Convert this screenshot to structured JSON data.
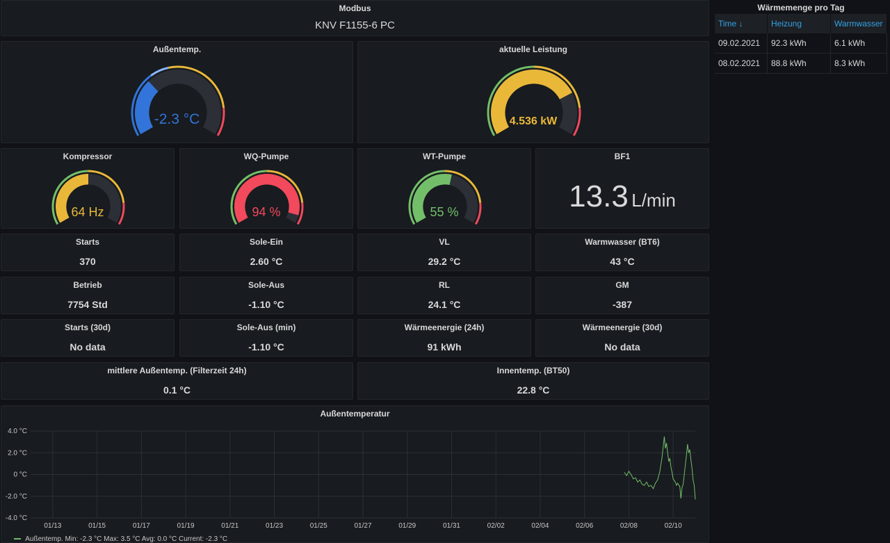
{
  "header": {
    "title": "Modbus",
    "device": "KNV F1155-6 PC"
  },
  "table": {
    "title": "Wärmemenge pro Tag",
    "columns": [
      "Time ↓",
      "Heizung",
      "Warmwasser"
    ],
    "rows": [
      [
        "09.02.2021",
        "92.3 kWh",
        "6.1 kWh"
      ],
      [
        "08.02.2021",
        "88.8 kWh",
        "8.3 kWh"
      ]
    ]
  },
  "gauges": {
    "aussentemp": {
      "title": "Außentemp.",
      "value": "-2.3 °C",
      "fraction": 0.32,
      "color": "#3274d9"
    },
    "leistung": {
      "title": "aktuelle Leistung",
      "value": "4.536 kW",
      "fraction": 0.76,
      "color": "#eab839"
    },
    "kompressor": {
      "title": "Kompressor",
      "value": "64 Hz",
      "fraction": 0.5,
      "color": "#eab839"
    },
    "wq_pumpe": {
      "title": "WQ-Pumpe",
      "value": "94 %",
      "fraction": 0.94,
      "color": "#f2495c"
    },
    "wt_pumpe": {
      "title": "WT-Pumpe",
      "value": "55 %",
      "fraction": 0.55,
      "color": "#73bf69"
    }
  },
  "bf1": {
    "title": "BF1",
    "value": "13.3",
    "unit": "L/min"
  },
  "stats": {
    "starts": {
      "title": "Starts",
      "value": "370"
    },
    "sole_ein": {
      "title": "Sole-Ein",
      "value": "2.60 °C"
    },
    "vl": {
      "title": "VL",
      "value": "29.2 °C"
    },
    "warmwasser": {
      "title": "Warmwasser (BT6)",
      "value": "43 °C"
    },
    "betrieb": {
      "title": "Betrieb",
      "value": "7754 Std"
    },
    "sole_aus": {
      "title": "Sole-Aus",
      "value": "-1.10 °C"
    },
    "rl": {
      "title": "RL",
      "value": "24.1 °C"
    },
    "gm": {
      "title": "GM",
      "value": "-387"
    },
    "starts30": {
      "title": "Starts (30d)",
      "value": "No data"
    },
    "sole_aus_min": {
      "title": "Sole-Aus (min)",
      "value": "-1.10 °C"
    },
    "waerme24": {
      "title": "Wärmeenergie (24h)",
      "value": "91 kWh"
    },
    "waerme30": {
      "title": "Wärmeenergie (30d)",
      "value": "No data"
    },
    "mittlere": {
      "title": "mittlere Außentemp. (Filterzeit 24h)",
      "value": "0.1 °C"
    },
    "innen": {
      "title": "Innentemp. (BT50)",
      "value": "22.8 °C"
    }
  },
  "chart": {
    "title": "Außentemperatur",
    "legend": "Außentemp.  Min: -2.3 °C  Max: 3.5 °C  Avg: 0.0 °C  Current: -2.3 °C"
  },
  "chart_data": {
    "type": "line",
    "title": "Außentemperatur",
    "ylim": [
      -4,
      4
    ],
    "yticks": [
      "4.0 °C",
      "2.0 °C",
      "0 °C",
      "-2.0 °C",
      "-4.0 °C"
    ],
    "xticks": [
      "01/13",
      "01/15",
      "01/17",
      "01/19",
      "01/21",
      "01/23",
      "01/25",
      "01/27",
      "01/29",
      "01/31",
      "02/02",
      "02/04",
      "02/06",
      "02/08",
      "02/10"
    ],
    "x_start": "01/12",
    "x_end": "02/10",
    "grid": true,
    "legend_position": "bottom-left",
    "series": [
      {
        "name": "Außentemp.",
        "color": "#73bf69",
        "points": [
          [
            26.8,
            0.2
          ],
          [
            26.9,
            -0.1
          ],
          [
            27.0,
            0.3
          ],
          [
            27.1,
            0.0
          ],
          [
            27.2,
            -0.4
          ],
          [
            27.3,
            -0.3
          ],
          [
            27.4,
            -0.7
          ],
          [
            27.5,
            -0.5
          ],
          [
            27.6,
            -0.9
          ],
          [
            27.7,
            -1.0
          ],
          [
            27.8,
            -0.7
          ],
          [
            27.9,
            -1.1
          ],
          [
            28.0,
            -1.0
          ],
          [
            28.1,
            -1.3
          ],
          [
            28.2,
            -0.8
          ],
          [
            28.3,
            -0.5
          ],
          [
            28.4,
            0.3
          ],
          [
            28.5,
            1.6
          ],
          [
            28.6,
            3.5
          ],
          [
            28.65,
            2.4
          ],
          [
            28.7,
            2.9
          ],
          [
            28.75,
            2.0
          ],
          [
            28.8,
            1.2
          ],
          [
            28.85,
            1.5
          ],
          [
            28.9,
            0.7
          ],
          [
            28.95,
            0.2
          ],
          [
            29.0,
            -0.4
          ],
          [
            29.1,
            -0.7
          ],
          [
            29.15,
            -1.0
          ],
          [
            29.2,
            -0.8
          ],
          [
            29.3,
            -1.1
          ],
          [
            29.35,
            -2.2
          ],
          [
            29.4,
            -1.2
          ],
          [
            29.45,
            -0.9
          ],
          [
            29.5,
            0.0
          ],
          [
            29.6,
            1.8
          ],
          [
            29.65,
            2.8
          ],
          [
            29.7,
            2.0
          ],
          [
            29.75,
            2.3
          ],
          [
            29.8,
            1.4
          ],
          [
            29.85,
            0.6
          ],
          [
            29.9,
            -0.5
          ],
          [
            29.95,
            -1.0
          ],
          [
            30.0,
            -2.3
          ]
        ]
      }
    ]
  }
}
